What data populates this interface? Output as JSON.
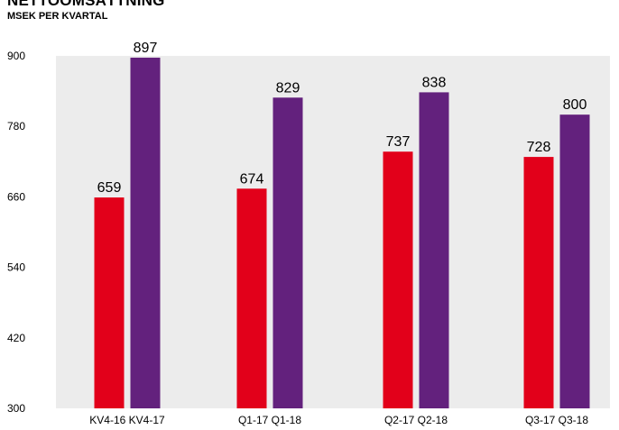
{
  "header": {
    "title": "NETTOOMSÄTTNING",
    "subtitle": "MSEK PER KVARTAL"
  },
  "chart_data": {
    "type": "bar",
    "categories": [
      "KV4-16 KV4-17",
      "Q1-17 Q1-18",
      "Q2-17 Q2-18",
      "Q3-17 Q3-18"
    ],
    "series": [
      {
        "values": [
          659,
          674,
          737,
          728
        ],
        "color": "#e2001a"
      },
      {
        "values": [
          897,
          829,
          838,
          800
        ],
        "color": "#63217d"
      }
    ],
    "title": "NETTOOMSÄTTNING",
    "subtitle": "MSEK PER KVARTAL",
    "ylim": [
      300,
      900
    ],
    "yticks": [
      300,
      420,
      540,
      660,
      780,
      900
    ],
    "grid": false,
    "plot_background": "#ececec",
    "data_labels": true
  }
}
